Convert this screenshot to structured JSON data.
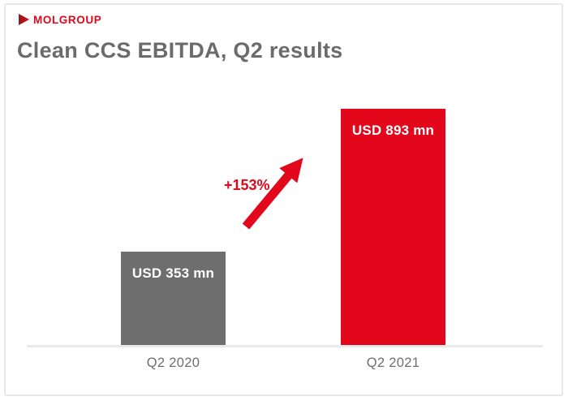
{
  "brand": {
    "logo_text": "MOLGROUP"
  },
  "header": {
    "title": "Clean CCS EBITDA, Q2 results"
  },
  "chart_data": {
    "type": "bar",
    "title": "Clean CCS EBITDA, Q2 results",
    "categories": [
      "Q2 2020",
      "Q2 2021"
    ],
    "values": [
      353,
      893
    ],
    "unit": "USD mn",
    "bar_labels": [
      "USD 353 mn",
      "USD 893 mn"
    ],
    "bar_colors": [
      "#6E6E6E",
      "#E2071B"
    ],
    "annotation": "+153%",
    "xlabel": "",
    "ylabel": "",
    "grid": false,
    "legend": false
  },
  "colors": {
    "brand_red": "#E2071B",
    "bar_gray": "#6E6E6E",
    "title_gray": "#6B6B6B",
    "axis_line": "#EAEAEA",
    "card_border": "#E8E8E8",
    "bar_label_text": "#FFFFFF"
  }
}
